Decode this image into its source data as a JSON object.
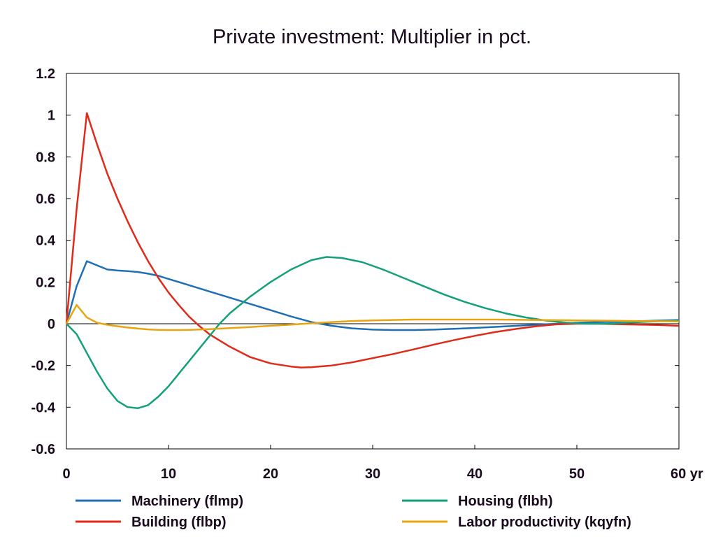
{
  "chart_data": {
    "type": "line",
    "title": "Private investment: Multiplier in pct.",
    "xlabel": "",
    "ylabel": "",
    "x_unit": "yr",
    "xlim": [
      0,
      60
    ],
    "ylim": [
      -0.6,
      1.2
    ],
    "x_ticks": [
      0,
      10,
      20,
      30,
      40,
      50,
      60
    ],
    "y_ticks": [
      -0.6,
      -0.4,
      -0.2,
      0,
      0.2,
      0.4,
      0.6,
      0.8,
      1,
      1.2
    ],
    "x_tick_labels": [
      "0",
      "10",
      "20",
      "30",
      "40",
      "50",
      "60 yr"
    ],
    "y_tick_labels": [
      "-0.6",
      "-0.4",
      "-0.2",
      "0",
      "0.2",
      "0.4",
      "0.6",
      "0.8",
      "1",
      "1.2"
    ],
    "grid": false,
    "zero_line": true,
    "legend_position": "bottom",
    "series": [
      {
        "name": "Machinery (flmp)",
        "color": "#1f6fb5",
        "x": [
          0,
          1,
          2,
          3,
          4,
          5,
          6,
          7,
          8,
          9,
          10,
          12,
          14,
          16,
          18,
          20,
          22,
          24,
          26,
          28,
          30,
          32,
          34,
          36,
          38,
          40,
          42,
          44,
          46,
          48,
          50,
          52,
          54,
          56,
          58,
          60
        ],
        "y": [
          0.0,
          0.18,
          0.3,
          0.28,
          0.26,
          0.255,
          0.252,
          0.248,
          0.24,
          0.23,
          0.215,
          0.185,
          0.155,
          0.125,
          0.095,
          0.065,
          0.035,
          0.008,
          -0.01,
          -0.022,
          -0.028,
          -0.03,
          -0.03,
          -0.028,
          -0.024,
          -0.02,
          -0.015,
          -0.01,
          -0.005,
          0.0,
          0.005,
          0.008,
          0.01,
          0.012,
          0.015,
          0.018
        ]
      },
      {
        "name": "Building (flbp)",
        "color": "#e02a1a",
        "x": [
          0,
          1,
          2,
          3,
          4,
          5,
          6,
          7,
          8,
          9,
          10,
          11,
          12,
          13,
          14,
          15,
          16,
          18,
          20,
          22,
          23,
          24,
          26,
          28,
          30,
          32,
          34,
          36,
          38,
          40,
          42,
          44,
          46,
          48,
          50,
          52,
          54,
          56,
          58,
          60
        ],
        "y": [
          0.0,
          0.55,
          1.01,
          0.86,
          0.72,
          0.6,
          0.49,
          0.39,
          0.3,
          0.22,
          0.15,
          0.09,
          0.035,
          -0.01,
          -0.05,
          -0.08,
          -0.11,
          -0.16,
          -0.19,
          -0.205,
          -0.21,
          -0.208,
          -0.2,
          -0.185,
          -0.165,
          -0.145,
          -0.123,
          -0.1,
          -0.078,
          -0.058,
          -0.04,
          -0.025,
          -0.012,
          -0.003,
          0.0,
          0.0,
          -0.002,
          -0.004,
          -0.006,
          -0.01
        ]
      },
      {
        "name": "Housing (flbh)",
        "color": "#13a07a",
        "x": [
          0,
          1,
          2,
          3,
          4,
          5,
          6,
          7,
          8,
          9,
          10,
          11,
          12,
          13,
          14,
          15,
          16,
          17,
          18,
          20,
          22,
          24,
          25.5,
          27,
          29,
          31,
          33,
          35,
          37,
          39,
          41,
          43,
          45,
          47,
          49,
          51,
          53,
          55,
          57,
          60
        ],
        "y": [
          0.0,
          -0.05,
          -0.14,
          -0.23,
          -0.31,
          -0.37,
          -0.4,
          -0.405,
          -0.39,
          -0.35,
          -0.3,
          -0.24,
          -0.18,
          -0.12,
          -0.06,
          0.0,
          0.05,
          0.09,
          0.13,
          0.2,
          0.26,
          0.305,
          0.32,
          0.315,
          0.295,
          0.26,
          0.22,
          0.18,
          0.14,
          0.105,
          0.075,
          0.05,
          0.03,
          0.015,
          0.005,
          0.0,
          0.0,
          0.005,
          0.01,
          0.015
        ]
      },
      {
        "name": "Labor productivity (kqyfn)",
        "color": "#e8a510",
        "x": [
          0,
          1,
          2,
          3,
          4,
          5,
          6,
          7,
          8,
          9,
          10,
          11,
          12,
          14,
          16,
          18,
          20,
          22,
          24,
          26,
          28,
          30,
          32,
          34,
          36,
          38,
          40,
          42,
          44,
          46,
          48,
          50,
          52,
          54,
          56,
          58,
          60
        ],
        "y": [
          0.0,
          0.09,
          0.03,
          0.005,
          -0.005,
          -0.012,
          -0.018,
          -0.023,
          -0.027,
          -0.029,
          -0.03,
          -0.03,
          -0.029,
          -0.026,
          -0.021,
          -0.016,
          -0.01,
          -0.004,
          0.002,
          0.008,
          0.013,
          0.016,
          0.018,
          0.02,
          0.02,
          0.02,
          0.02,
          0.02,
          0.019,
          0.018,
          0.017,
          0.016,
          0.015,
          0.014,
          0.013,
          0.012,
          0.011
        ]
      }
    ]
  }
}
